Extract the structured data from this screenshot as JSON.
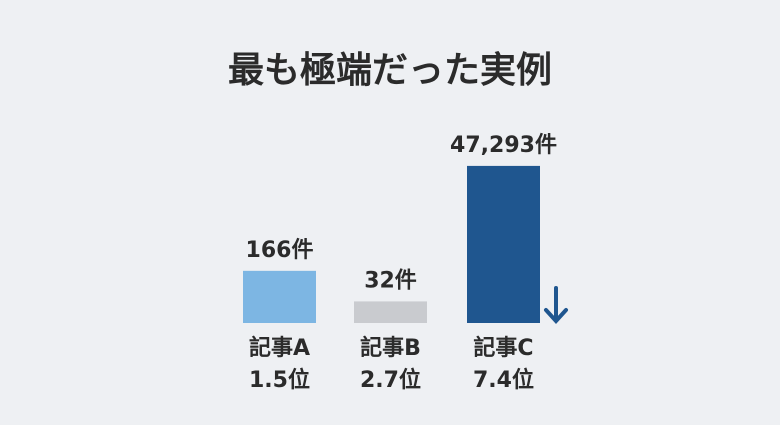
{
  "chart_data": {
    "type": "bar",
    "title": "最も極端だった実例",
    "categories": [
      "記事A",
      "記事B",
      "記事C"
    ],
    "rank_labels": [
      "1.5位",
      "2.7位",
      "7.4位"
    ],
    "values": [
      166,
      32,
      47293
    ],
    "value_labels": [
      "166件",
      "32件",
      "47,293件"
    ],
    "colors": [
      "#7db6e3",
      "#c9cbcf",
      "#1f568f"
    ],
    "log_scale": true,
    "ylim": [
      10,
      100000
    ]
  }
}
